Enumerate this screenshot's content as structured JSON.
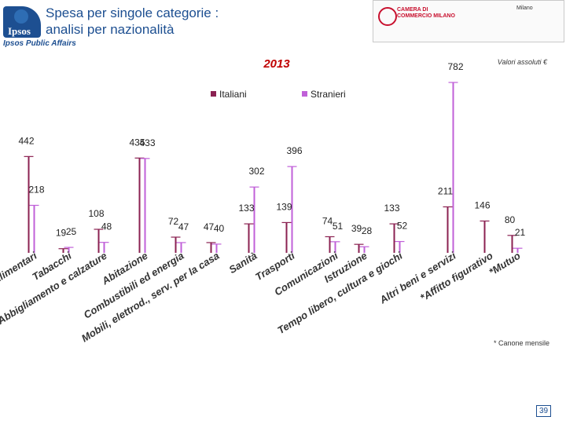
{
  "header": {
    "title_line1": "Spesa per singole categorie :",
    "title_line2": "analisi per nazionalità",
    "logo_text": "Ipsos",
    "brand_subtitle": "Ipsos Public Affairs",
    "sponsor_text": "CAMERA DI COMMERCIO MILANO",
    "city_text": "Milano"
  },
  "footnote": "* Canone mensile",
  "page_number": "39",
  "chart_data": {
    "type": "bar",
    "title": "2013",
    "unit_note": "Valori assoluti €",
    "categories": [
      "Alimentari",
      "Tabacchi",
      "Abbigliamento e calzature",
      "Abitazione",
      "Combustibili ed energia",
      "Mobili, elettrod., serv. per la casa",
      "Sanità",
      "Trasporti",
      "Comunicazioni",
      "Istruzione",
      "Tempo libero, cultura e giochi",
      "Altri beni e servizi",
      "*Affitto figurativo",
      "*Mutuo"
    ],
    "series": [
      {
        "name": "Italiani",
        "color": "#8b2252",
        "values": [
          442,
          19,
          108,
          435,
          72,
          47,
          133,
          139,
          74,
          39,
          133,
          211,
          146,
          80
        ]
      },
      {
        "name": "Stranieri",
        "color": "#c060d8",
        "values": [
          218,
          25,
          48,
          433,
          47,
          40,
          302,
          396,
          51,
          28,
          52,
          782,
          null,
          21
        ]
      }
    ],
    "ylim": [
      0,
      800
    ],
    "legend": "top"
  }
}
